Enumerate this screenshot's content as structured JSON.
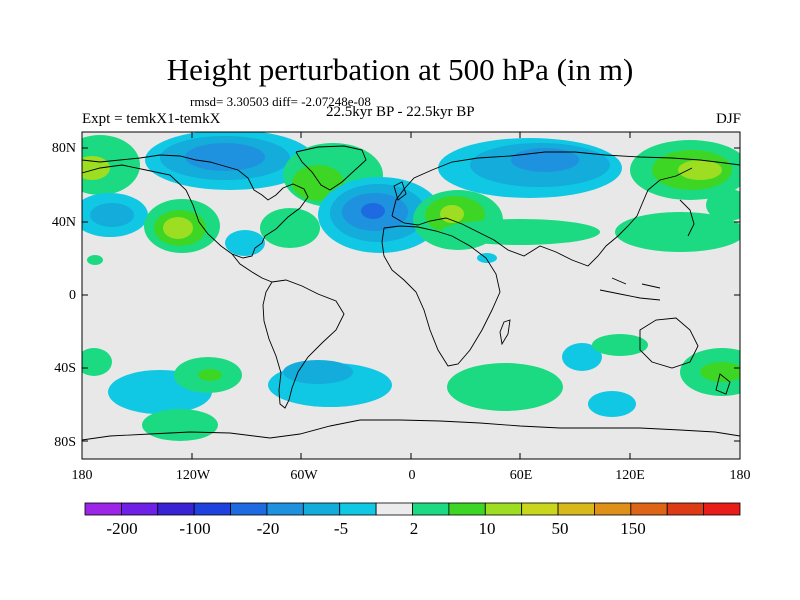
{
  "title": "Height perturbation at 500 hPa (in m)",
  "rmsd_line": "rmsd= 3.30503 diff= -2.07248e-08",
  "expt": "Expt = temkX1-temkX",
  "period": "22.5kyr BP - 22.5kyr BP",
  "season": "DJF",
  "lat_labels": [
    "80N",
    "40N",
    "0",
    "40S",
    "80S"
  ],
  "lon_labels": [
    "180",
    "120W",
    "60W",
    "0",
    "60E",
    "120E",
    "180"
  ],
  "colorbar": {
    "colors": [
      "#9d25e8",
      "#6f20e6",
      "#3a23d4",
      "#1f41de",
      "#1e6ae0",
      "#1f92df",
      "#13acdb",
      "#10c8e3",
      "#ececec",
      "#1bda82",
      "#3ed625",
      "#9ddd22",
      "#c8d71e",
      "#d8b91b",
      "#de9019",
      "#de6418",
      "#dd3a16",
      "#e81d1a"
    ],
    "labels": [
      "-200",
      "-100",
      "-20",
      "-5",
      "2",
      "10",
      "50",
      "150"
    ]
  },
  "map_colors": {
    "background": "#e8e8e8",
    "blue_dark": "#1e6ae0",
    "blue_mid": "#1f92df",
    "blue_light": "#13acdb",
    "cyan": "#10c8e3",
    "green": "#1bda82",
    "lime": "#3ed625",
    "yellow_green": "#9ddd22",
    "yellow": "#c8d71e",
    "coast": "#000000"
  }
}
